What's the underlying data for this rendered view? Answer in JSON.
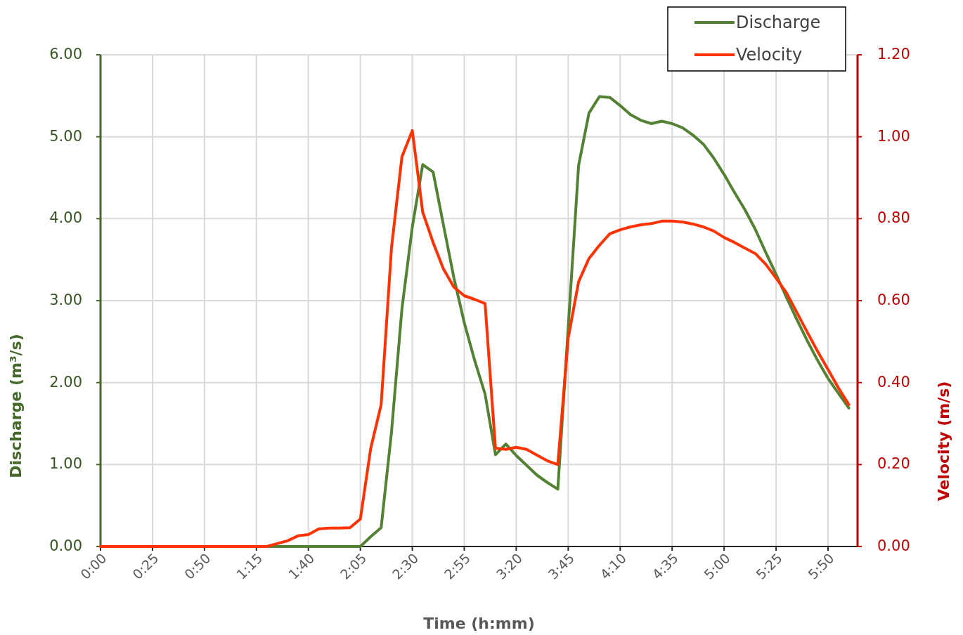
{
  "chart_data": {
    "type": "line",
    "xlabel": "Time (h:mm)",
    "ylabel": "Discharge (m³/s)",
    "y2label": "Velocity (m/s)",
    "x": [
      0,
      0.0833,
      0.1667,
      0.25,
      0.3333,
      0.4167,
      0.5,
      0.5833,
      0.6667,
      0.75,
      0.8333,
      0.9167,
      1,
      1.0833,
      1.1667,
      1.25,
      1.3333,
      1.4167,
      1.5,
      1.5833,
      1.6667,
      1.75,
      1.8333,
      1.9167,
      2,
      2.0833,
      2.1667,
      2.25,
      2.3333,
      2.4167,
      2.5,
      2.5833,
      2.6667,
      2.75,
      2.8333,
      2.9167,
      3,
      3.0833,
      3.1667,
      3.25,
      3.3333,
      3.4167,
      3.5,
      3.5833,
      3.6667,
      3.75,
      3.8333,
      3.9167,
      4,
      4.0833,
      4.1667,
      4.25,
      4.3333,
      4.4167,
      4.5,
      4.5833,
      4.6667,
      4.75,
      4.8333,
      4.9167,
      5,
      5.0833,
      5.1667,
      5.25,
      5.3333,
      5.4167,
      5.5,
      5.5833,
      5.6667,
      5.75,
      5.8333,
      5.9167,
      6
    ],
    "xlim": [
      0,
      6.07
    ],
    "xticks": [
      {
        "value": 0,
        "label": "0:00"
      },
      {
        "value": 0.4167,
        "label": "0:25"
      },
      {
        "value": 0.8333,
        "label": "0:50"
      },
      {
        "value": 1.25,
        "label": "1:15"
      },
      {
        "value": 1.6667,
        "label": "1:40"
      },
      {
        "value": 2.0833,
        "label": "2:05"
      },
      {
        "value": 2.5,
        "label": "2:30"
      },
      {
        "value": 2.9167,
        "label": "2:55"
      },
      {
        "value": 3.3333,
        "label": "3:20"
      },
      {
        "value": 3.75,
        "label": "3:45"
      },
      {
        "value": 4.1667,
        "label": "4:10"
      },
      {
        "value": 4.5833,
        "label": "4:35"
      },
      {
        "value": 5,
        "label": "5:00"
      },
      {
        "value": 5.4167,
        "label": "5:25"
      },
      {
        "value": 5.8333,
        "label": "5:50"
      }
    ],
    "ylim": [
      0,
      6
    ],
    "yticks": [
      {
        "value": 0,
        "label": "0.00"
      },
      {
        "value": 1,
        "label": "1.00"
      },
      {
        "value": 2,
        "label": "2.00"
      },
      {
        "value": 3,
        "label": "3.00"
      },
      {
        "value": 4,
        "label": "4.00"
      },
      {
        "value": 5,
        "label": "5.00"
      },
      {
        "value": 6,
        "label": "6.00"
      }
    ],
    "y2lim": [
      0,
      1.2
    ],
    "y2ticks": [
      {
        "value": 0,
        "label": "0.00"
      },
      {
        "value": 0.2,
        "label": "0.20"
      },
      {
        "value": 0.4,
        "label": "0.40"
      },
      {
        "value": 0.6,
        "label": "0.60"
      },
      {
        "value": 0.8,
        "label": "0.80"
      },
      {
        "value": 1,
        "label": "1.00"
      },
      {
        "value": 1.2,
        "label": "1.20"
      }
    ],
    "grid": true,
    "legend": "top right",
    "marker": "none",
    "line_style": "solid",
    "series": [
      {
        "name": "Discharge",
        "color": "#548235",
        "values": [
          0,
          0,
          0,
          0,
          0,
          0,
          0,
          0,
          0,
          0,
          0,
          0,
          0,
          0,
          0,
          0,
          0,
          0,
          0,
          0,
          0,
          0,
          0,
          0,
          0,
          0,
          0.12,
          0.23,
          1.4,
          2.9,
          3.9,
          4.66,
          4.57,
          3.92,
          3.28,
          2.73,
          2.27,
          1.86,
          1.12,
          1.25,
          1.11,
          0.99,
          0.87,
          0.78,
          0.7,
          2.67,
          4.65,
          5.29,
          5.49,
          5.48,
          5.38,
          5.27,
          5.2,
          5.16,
          5.19,
          5.16,
          5.11,
          5.02,
          4.91,
          4.74,
          4.54,
          4.32,
          4.11,
          3.87,
          3.59,
          3.32,
          3.04,
          2.77,
          2.51,
          2.27,
          2.05,
          1.87,
          1.69
        ]
      },
      {
        "name": "Velocity",
        "color": "#ff3300",
        "axis": "y2",
        "values": [
          0,
          0,
          0,
          0,
          0,
          0,
          0,
          0,
          0,
          0,
          0,
          0,
          0,
          0,
          0,
          0,
          0,
          0.007,
          0.014,
          0.026,
          0.029,
          0.043,
          0.045,
          0.045,
          0.046,
          0.067,
          0.24,
          0.346,
          0.73,
          0.951,
          1.015,
          0.816,
          0.742,
          0.677,
          0.633,
          0.612,
          0.603,
          0.593,
          0.24,
          0.237,
          0.242,
          0.237,
          0.223,
          0.209,
          0.2,
          0.509,
          0.646,
          0.703,
          0.735,
          0.763,
          0.773,
          0.78,
          0.785,
          0.788,
          0.794,
          0.794,
          0.792,
          0.787,
          0.78,
          0.77,
          0.754,
          0.742,
          0.728,
          0.715,
          0.689,
          0.655,
          0.619,
          0.571,
          0.523,
          0.476,
          0.432,
          0.387,
          0.346
        ]
      }
    ]
  }
}
